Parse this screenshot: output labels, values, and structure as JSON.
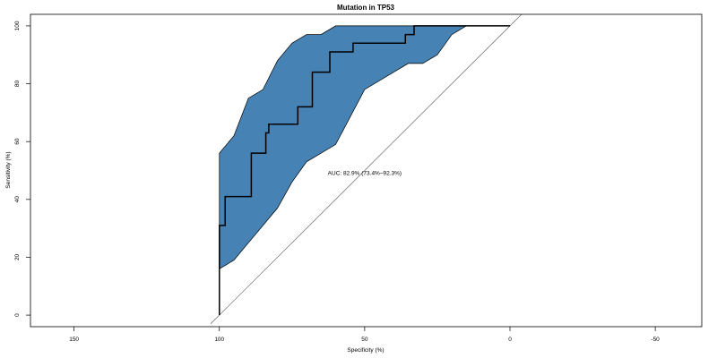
{
  "chart_data": {
    "type": "line",
    "title": "Mutation in TP53",
    "xlabel": "Specificity (%)",
    "ylabel": "Sensitivity (%)",
    "xlim": [
      165,
      -66
    ],
    "ylim": [
      -4,
      104
    ],
    "x_reversed": true,
    "x_ticks": [
      150,
      100,
      50,
      0,
      -50
    ],
    "x_tick_labels": [
      "150",
      "100",
      "50",
      "0",
      "-50"
    ],
    "y_ticks": [
      0,
      20,
      40,
      60,
      80,
      100
    ],
    "y_tick_labels": [
      "0",
      "20",
      "40",
      "60",
      "80",
      "100"
    ],
    "grid": false,
    "legend": "none",
    "annotation": {
      "text": "AUC: 82.9% (73.4%–92.3%)",
      "x": 50,
      "y": 49
    },
    "colors": {
      "ci_band": "#4682B4",
      "roc_line": "#000000",
      "diagonal": "#555555"
    },
    "series": [
      {
        "role": "roc_curve",
        "x": [
          100,
          100,
          100,
          98,
          98,
          89,
          89,
          84,
          84,
          83,
          83,
          81,
          81,
          73,
          73,
          68,
          68,
          62,
          62,
          54,
          54,
          36,
          36,
          33,
          33,
          0
        ],
        "y": [
          0,
          16,
          31,
          31,
          41,
          41,
          56,
          56,
          63,
          63,
          66,
          66,
          66,
          66,
          72,
          72,
          84,
          84,
          91,
          91,
          94,
          94,
          97,
          97,
          100,
          100
        ]
      },
      {
        "role": "ci_upper",
        "x": [
          100,
          95,
          90,
          85,
          80,
          75,
          70,
          65,
          60,
          50,
          40,
          30,
          20,
          15
        ],
        "y": [
          56,
          62,
          75,
          78,
          88,
          94,
          97,
          97,
          100,
          100,
          100,
          100,
          100,
          100
        ]
      },
      {
        "role": "ci_lower",
        "x": [
          100,
          95,
          90,
          85,
          80,
          75,
          70,
          60,
          50,
          40,
          35,
          30,
          25,
          20,
          15
        ],
        "y": [
          16,
          19,
          25,
          31,
          37,
          46,
          53,
          59,
          78,
          84,
          87,
          87,
          90,
          97,
          100
        ]
      },
      {
        "role": "diagonal",
        "x": [
          103,
          -4
        ],
        "y": [
          -3,
          104
        ]
      }
    ]
  }
}
